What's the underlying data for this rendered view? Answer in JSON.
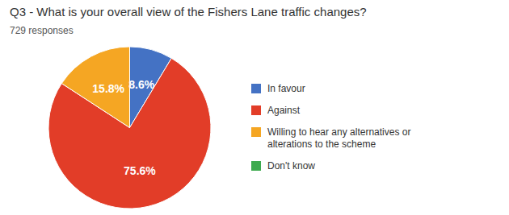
{
  "chart_data": {
    "type": "pie",
    "title": "Q3 - What is your overall view of the Fishers Lane traffic changes?",
    "subtitle": "729 responses",
    "categories": [
      "In favour",
      "Against",
      "Willing to hear any alternatives or\nalterations to the scheme",
      "Don't know"
    ],
    "values": [
      8.6,
      75.6,
      15.8,
      0.0
    ],
    "value_labels": [
      "8.6%",
      "75.6%",
      "15.8%",
      null
    ],
    "data_labels": true,
    "colors": [
      "#4472C4",
      "#E23D28",
      "#F5A623",
      "#3DAA4E"
    ],
    "legend": "right"
  }
}
